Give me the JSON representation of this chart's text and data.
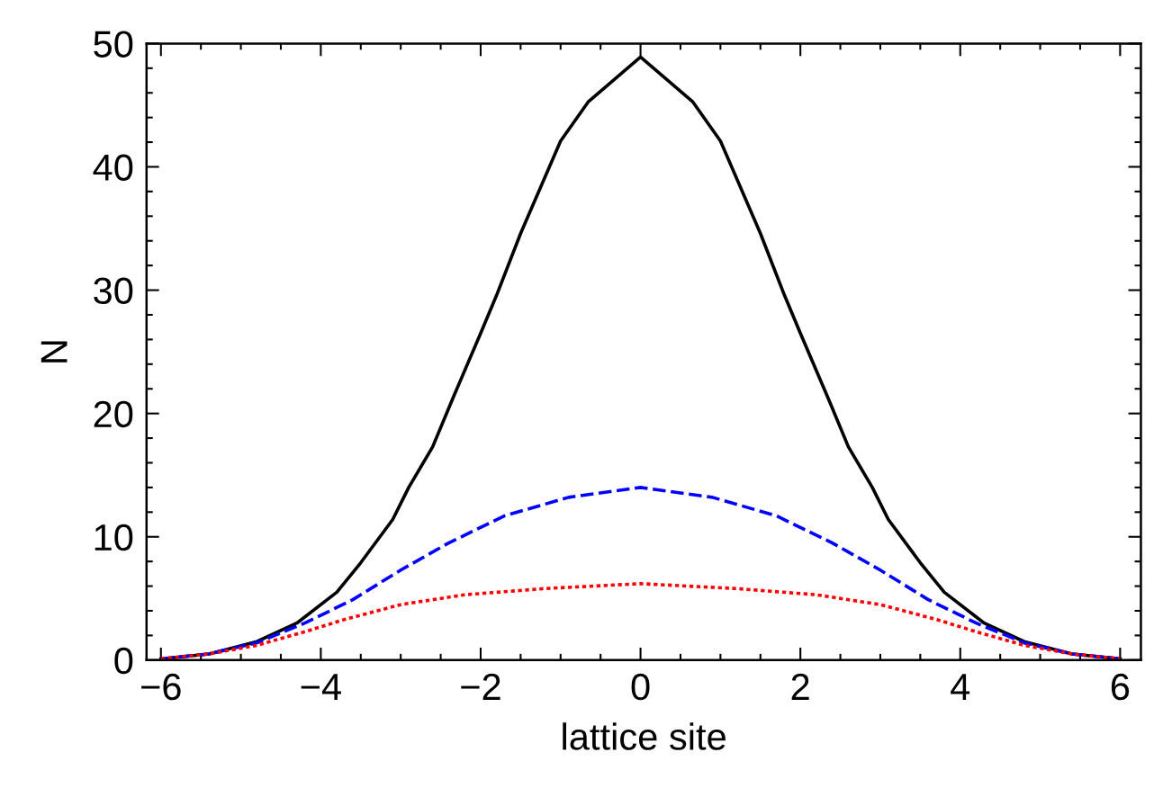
{
  "chart_data": {
    "type": "line",
    "xlabel": "lattice site",
    "ylabel": "N",
    "xlim": [
      -6.18,
      6.26
    ],
    "ylim": [
      0,
      50
    ],
    "xticks": [
      -6,
      {
        "value": -5.5,
        "label": null
      },
      {
        "value": -5,
        "label": null
      },
      {
        "value": -4.5,
        "label": null
      },
      {
        "value": -4,
        "label": "−4"
      },
      {
        "value": -3.5,
        "label": null
      },
      {
        "value": -3,
        "label": null
      },
      {
        "value": -2.5,
        "label": null
      },
      {
        "value": -2,
        "label": "−2"
      },
      {
        "value": -1.5,
        "label": null
      },
      {
        "value": -1,
        "label": null
      },
      {
        "value": -0.5,
        "label": null
      },
      0,
      {
        "value": 0.5,
        "label": null
      },
      {
        "value": 1,
        "label": null
      },
      {
        "value": 1.5,
        "label": null
      },
      2,
      {
        "value": 2.5,
        "label": null
      },
      {
        "value": 3,
        "label": null
      },
      {
        "value": 3.5,
        "label": null
      },
      4,
      {
        "value": 4.5,
        "label": null
      },
      {
        "value": 5,
        "label": null
      },
      {
        "value": 5.5,
        "label": null
      },
      6
    ],
    "yticks": [
      0,
      {
        "value": 2,
        "label": null
      },
      {
        "value": 4,
        "label": null
      },
      {
        "value": 6,
        "label": null
      },
      {
        "value": 8,
        "label": null
      },
      10,
      {
        "value": 12,
        "label": null
      },
      {
        "value": 14,
        "label": null
      },
      {
        "value": 16,
        "label": null
      },
      {
        "value": 18,
        "label": null
      },
      20,
      {
        "value": 22,
        "label": null
      },
      {
        "value": 24,
        "label": null
      },
      {
        "value": 26,
        "label": null
      },
      {
        "value": 28,
        "label": null
      },
      30,
      {
        "value": 32,
        "label": null
      },
      {
        "value": 34,
        "label": null
      },
      {
        "value": 36,
        "label": null
      },
      {
        "value": 38,
        "label": null
      },
      40,
      {
        "value": 42,
        "label": null
      },
      {
        "value": 44,
        "label": null
      },
      {
        "value": 46,
        "label": null
      },
      {
        "value": 48,
        "label": null
      },
      50
    ],
    "grid": false,
    "legend": false,
    "series": [
      {
        "color": "#000000",
        "line_style": "solid",
        "x": [
          -6,
          -5.4,
          -4.8,
          -4.3,
          -3.8,
          -3.5,
          -3.1,
          -2.9,
          -2.6,
          -2.35,
          -2,
          -1.8,
          -1.5,
          -1,
          -0.65,
          0,
          0.65,
          1,
          1.5,
          1.8,
          2,
          2.35,
          2.6,
          2.9,
          3.1,
          3.5,
          3.8,
          4.3,
          4.8,
          5.4,
          6
        ],
        "values": [
          0.1,
          0.5,
          1.5,
          3.0,
          5.5,
          7.9,
          11.4,
          14.0,
          17.3,
          21.2,
          26.5,
          29.6,
          34.6,
          42.1,
          45.3,
          48.9,
          45.3,
          42.1,
          34.6,
          29.6,
          26.5,
          21.2,
          17.3,
          14.0,
          11.4,
          7.9,
          5.5,
          3.0,
          1.5,
          0.5,
          0.1
        ]
      },
      {
        "color": "#0000ff",
        "line_style": "dashed",
        "x": [
          -6,
          -5.4,
          -4.8,
          -4.2,
          -3.6,
          -3,
          -2.4,
          -1.7,
          -0.9,
          0,
          0.9,
          1.7,
          2.4,
          3,
          3.6,
          4.2,
          4.8,
          5.4,
          6
        ],
        "values": [
          0.1,
          0.5,
          1.4,
          3.0,
          4.9,
          7.3,
          9.5,
          11.7,
          13.2,
          14.0,
          13.2,
          11.7,
          9.5,
          7.3,
          4.9,
          3.0,
          1.4,
          0.5,
          0.1
        ]
      },
      {
        "color": "#ff0000",
        "line_style": "dotted",
        "x": [
          -6,
          -5.4,
          -4.8,
          -4.2,
          -3.7,
          -3,
          -2.2,
          -1.2,
          0,
          1.2,
          2.2,
          3,
          3.7,
          4.2,
          4.8,
          5.4,
          6
        ],
        "values": [
          0.1,
          0.5,
          1.2,
          2.3,
          3.3,
          4.5,
          5.3,
          5.8,
          6.2,
          5.8,
          5.3,
          4.5,
          3.3,
          2.3,
          1.2,
          0.5,
          0.1
        ]
      }
    ]
  }
}
